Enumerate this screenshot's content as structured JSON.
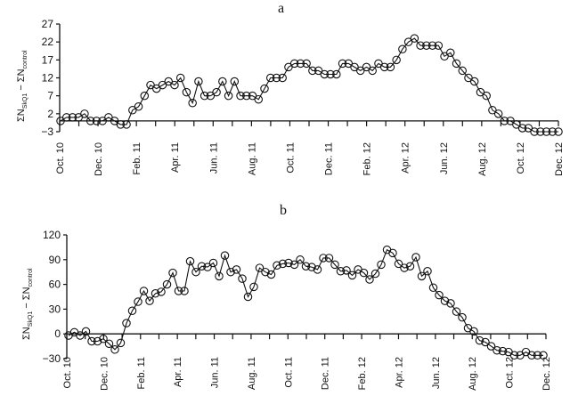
{
  "chart_data": [
    {
      "panel": "a",
      "type": "line",
      "title": "a",
      "xlabel": "",
      "ylabel": "ΣN_SkQ1 − ΣN_control",
      "ylabel_main": "ΣN",
      "ylabel_sub1": "SkQ1",
      "ylabel_mid": " − ΣN",
      "ylabel_sub2": "control",
      "ylim": [
        -3,
        27
      ],
      "yticks": [
        -3,
        2,
        7,
        12,
        17,
        22,
        27
      ],
      "xtick_labels": [
        "Oct. 10",
        "Dec. 10",
        "Feb. 11",
        "Apr. 11",
        "Jun. 11",
        "Aug. 11",
        "Oct. 11",
        "Dec. 11",
        "Feb. 12",
        "Apr. 12",
        "Jun. 12",
        "Aug. 12",
        "Oct. 12",
        "Dec. 12"
      ],
      "grid": false,
      "marker": "open-circle",
      "values": [
        0,
        1,
        1,
        1,
        2,
        0,
        0,
        0,
        1,
        0,
        -1,
        -1,
        3,
        4,
        7,
        10,
        9,
        10,
        11,
        10,
        12,
        8,
        5,
        11,
        7,
        7,
        8,
        11,
        7,
        11,
        7,
        7,
        7,
        6,
        9,
        12,
        12,
        12,
        15,
        16,
        16,
        16,
        14,
        14,
        13,
        13,
        13,
        16,
        16,
        15,
        14,
        15,
        14,
        16,
        15,
        15,
        17,
        20,
        22,
        23,
        21,
        21,
        21,
        21,
        18,
        19,
        16,
        14,
        12,
        11,
        8,
        7,
        3,
        2,
        0,
        0,
        -1,
        -2,
        -2,
        -3,
        -3,
        -3,
        -3,
        -3
      ]
    },
    {
      "panel": "b",
      "type": "line",
      "title": "b",
      "xlabel": "",
      "ylabel": "ΣN_SkQ1 − ΣN_control",
      "ylabel_main": "ΣN",
      "ylabel_sub1": "SkQ1",
      "ylabel_mid": " − ΣN",
      "ylabel_sub2": "control",
      "ylim": [
        -30,
        120
      ],
      "yticks": [
        -30,
        0,
        30,
        60,
        90,
        120
      ],
      "xtick_labels": [
        "Oct. 10",
        "Dec. 10",
        "Feb. 11",
        "Apr. 11",
        "Jun. 11",
        "Aug. 11",
        "Oct. 11",
        "Dec. 11",
        "Feb. 12",
        "Apr. 12",
        "Jun. 12",
        "Aug. 12",
        "Oct. 12",
        "Dec. 12"
      ],
      "grid": false,
      "marker": "open-circle",
      "values": [
        -2,
        2,
        -2,
        3,
        -9,
        -9,
        -6,
        -12,
        -19,
        -11,
        13,
        28,
        39,
        52,
        40,
        49,
        51,
        60,
        74,
        52,
        52,
        88,
        75,
        82,
        81,
        86,
        70,
        95,
        75,
        78,
        67,
        45,
        57,
        80,
        75,
        72,
        83,
        85,
        86,
        84,
        90,
        82,
        81,
        78,
        92,
        92,
        84,
        76,
        77,
        71,
        78,
        74,
        66,
        73,
        84,
        102,
        98,
        85,
        80,
        82,
        93,
        70,
        76,
        56,
        47,
        40,
        37,
        27,
        20,
        7,
        3,
        -8,
        -10,
        -15,
        -20,
        -21,
        -22,
        -26,
        -26,
        -22,
        -26,
        -26,
        -26
      ]
    }
  ],
  "panels": {
    "a": {
      "letter": "a"
    },
    "b": {
      "letter": "b"
    }
  }
}
